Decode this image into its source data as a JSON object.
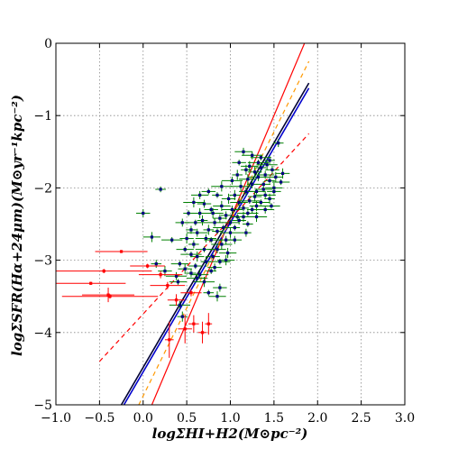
{
  "chart_data": {
    "type": "scatter",
    "title": "",
    "xlabel": "logΣHI+H2(M⊙pc⁻²)",
    "ylabel": "logΣSFR(Hα+24μm)(M⊙yr⁻¹kpc⁻²)",
    "xlim": [
      -1.0,
      3.0
    ],
    "ylim": [
      -5,
      0
    ],
    "x_ticks": [
      "−1.0",
      "−0.5",
      "0.0",
      "0.5",
      "1.0",
      "1.5",
      "2.0",
      "2.5",
      "3.0"
    ],
    "y_ticks": [
      "−5",
      "−4",
      "−3",
      "−2",
      "−1",
      "0"
    ],
    "grid": true,
    "colors": {
      "cloud_marker": "#000080",
      "cloud_errbar": "#008000",
      "red_points": "#ff0000",
      "fit_blue": "#0000cc",
      "fit_navy": "#000033",
      "fit_red": "#ff0000",
      "fit_red_dashed": "#ff0000",
      "fit_orange_dashed": "#ff9900"
    },
    "lines": [
      {
        "style": "solid",
        "color": "fit_red",
        "x": [
          0.1,
          1.85
        ],
        "y": [
          -5.0,
          0.0
        ]
      },
      {
        "style": "solid",
        "color": "fit_blue",
        "x": [
          -0.22,
          1.9
        ],
        "y": [
          -5.0,
          -0.62
        ]
      },
      {
        "style": "solid",
        "color": "fit_navy",
        "x": [
          -0.25,
          1.9
        ],
        "y": [
          -5.0,
          -0.55
        ]
      },
      {
        "style": "dashed",
        "color": "fit_orange_dashed",
        "x": [
          -0.05,
          1.9
        ],
        "y": [
          -5.0,
          -0.25
        ]
      },
      {
        "style": "dashed",
        "color": "fit_red_dashed",
        "x": [
          -0.5,
          1.9
        ],
        "y": [
          -4.4,
          -1.25
        ]
      }
    ],
    "red_points": [
      {
        "x": -0.25,
        "y": -2.88,
        "xerr": 0.3,
        "yerr": 0.02
      },
      {
        "x": -0.45,
        "y": -3.15,
        "xerr": 0.55,
        "yerr": 0.03
      },
      {
        "x": -0.6,
        "y": -3.32,
        "xerr": 0.4,
        "yerr": 0.02
      },
      {
        "x": -0.38,
        "y": -3.5,
        "xerr": 0.55,
        "yerr": 0.03
      },
      {
        "x": -0.4,
        "y": -3.48,
        "xerr": 0.3,
        "yerr": 0.1
      },
      {
        "x": 0.05,
        "y": -3.08,
        "xerr": 0.2,
        "yerr": 0.03
      },
      {
        "x": 0.2,
        "y": -3.2,
        "xerr": 0.25,
        "yerr": 0.05
      },
      {
        "x": 0.28,
        "y": -3.35,
        "xerr": 0.2,
        "yerr": 0.05
      },
      {
        "x": 0.3,
        "y": -4.1,
        "xerr": 0.05,
        "yerr": 0.25
      },
      {
        "x": 0.48,
        "y": -3.95,
        "xerr": 0.08,
        "yerr": 0.2
      },
      {
        "x": 0.58,
        "y": -3.88,
        "xerr": 0.06,
        "yerr": 0.12
      },
      {
        "x": 0.68,
        "y": -4.0,
        "xerr": 0.05,
        "yerr": 0.15
      },
      {
        "x": 0.75,
        "y": -3.88,
        "xerr": 0.04,
        "yerr": 0.15
      },
      {
        "x": 0.38,
        "y": -3.55,
        "xerr": 0.1,
        "yerr": 0.08
      },
      {
        "x": 0.55,
        "y": -3.45,
        "xerr": 0.12,
        "yerr": 0.05
      }
    ],
    "cloud_points": [
      [
        0.2,
        -2.02
      ],
      [
        0.0,
        -2.35
      ],
      [
        0.1,
        -2.68
      ],
      [
        0.33,
        -2.72
      ],
      [
        0.15,
        -3.05
      ],
      [
        0.25,
        -3.15
      ],
      [
        0.4,
        -3.3
      ],
      [
        0.42,
        -3.62
      ],
      [
        0.45,
        -3.78
      ],
      [
        0.6,
        -3.08
      ],
      [
        0.65,
        -3.2
      ],
      [
        0.7,
        -3.3
      ],
      [
        0.75,
        -3.45
      ],
      [
        0.88,
        -3.38
      ],
      [
        0.85,
        -3.5
      ],
      [
        0.55,
        -2.92
      ],
      [
        0.58,
        -2.78
      ],
      [
        0.62,
        -2.95
      ],
      [
        0.7,
        -2.85
      ],
      [
        0.72,
        -2.7
      ],
      [
        0.75,
        -2.58
      ],
      [
        0.78,
        -2.72
      ],
      [
        0.82,
        -2.48
      ],
      [
        0.8,
        -2.35
      ],
      [
        0.85,
        -2.6
      ],
      [
        0.88,
        -2.42
      ],
      [
        0.9,
        -2.25
      ],
      [
        0.92,
        -2.55
      ],
      [
        0.95,
        -2.38
      ],
      [
        0.98,
        -2.15
      ],
      [
        1.0,
        -2.48
      ],
      [
        1.02,
        -2.3
      ],
      [
        1.05,
        -2.1
      ],
      [
        1.08,
        -2.4
      ],
      [
        1.1,
        -2.2
      ],
      [
        1.12,
        -1.98
      ],
      [
        1.15,
        -2.28
      ],
      [
        1.18,
        -2.05
      ],
      [
        1.2,
        -1.88
      ],
      [
        1.22,
        -2.18
      ],
      [
        1.25,
        -1.95
      ],
      [
        1.28,
        -1.78
      ],
      [
        1.3,
        -2.05
      ],
      [
        1.32,
        -1.85
      ],
      [
        1.35,
        -1.72
      ],
      [
        1.38,
        -1.95
      ],
      [
        1.4,
        -1.82
      ],
      [
        1.42,
        -1.68
      ],
      [
        1.45,
        -1.9
      ],
      [
        1.48,
        -1.75
      ],
      [
        1.5,
        -2.0
      ],
      [
        1.35,
        -1.58
      ],
      [
        1.55,
        -1.38
      ],
      [
        1.6,
        -1.8
      ],
      [
        1.58,
        -1.92
      ],
      [
        1.25,
        -1.55
      ],
      [
        1.18,
        -1.75
      ],
      [
        1.1,
        -1.65
      ],
      [
        1.15,
        -1.5
      ],
      [
        0.9,
        -1.98
      ],
      [
        0.85,
        -2.1
      ],
      [
        0.7,
        -2.22
      ],
      [
        0.65,
        -2.35
      ],
      [
        0.6,
        -2.48
      ],
      [
        0.55,
        -2.58
      ],
      [
        0.5,
        -2.7
      ],
      [
        0.48,
        -2.85
      ],
      [
        0.62,
        -2.62
      ],
      [
        0.68,
        -2.45
      ],
      [
        0.78,
        -2.3
      ],
      [
        0.95,
        -2.72
      ],
      [
        1.0,
        -2.62
      ],
      [
        1.05,
        -2.55
      ],
      [
        1.1,
        -2.45
      ],
      [
        1.15,
        -2.4
      ],
      [
        1.2,
        -2.35
      ],
      [
        1.25,
        -2.3
      ],
      [
        1.3,
        -2.25
      ],
      [
        1.35,
        -2.2
      ],
      [
        1.4,
        -2.1
      ],
      [
        0.72,
        -3.02
      ],
      [
        0.8,
        -2.95
      ],
      [
        0.85,
        -2.85
      ],
      [
        0.9,
        -2.78
      ],
      [
        0.78,
        -3.15
      ],
      [
        0.82,
        -3.1
      ],
      [
        0.95,
        -3.0
      ],
      [
        0.62,
        -3.25
      ],
      [
        0.55,
        -3.18
      ],
      [
        0.48,
        -3.12
      ],
      [
        0.42,
        -3.05
      ],
      [
        0.38,
        -3.22
      ],
      [
        1.45,
        -2.15
      ],
      [
        1.5,
        -2.05
      ],
      [
        1.4,
        -2.3
      ],
      [
        1.3,
        -2.4
      ],
      [
        1.2,
        -2.5
      ],
      [
        1.05,
        -2.72
      ],
      [
        0.97,
        -2.9
      ],
      [
        0.88,
        -3.02
      ],
      [
        1.18,
        -2.62
      ],
      [
        1.28,
        -2.12
      ],
      [
        1.38,
        -2.02
      ],
      [
        1.02,
        -1.9
      ],
      [
        1.08,
        -1.82
      ],
      [
        0.75,
        -2.05
      ],
      [
        0.65,
        -2.1
      ],
      [
        0.58,
        -2.2
      ],
      [
        0.52,
        -2.35
      ],
      [
        0.45,
        -2.48
      ],
      [
        1.22,
        -1.7
      ],
      [
        1.32,
        -1.65
      ],
      [
        1.45,
        -1.62
      ],
      [
        1.52,
        -1.85
      ],
      [
        1.47,
        -2.25
      ]
    ]
  }
}
